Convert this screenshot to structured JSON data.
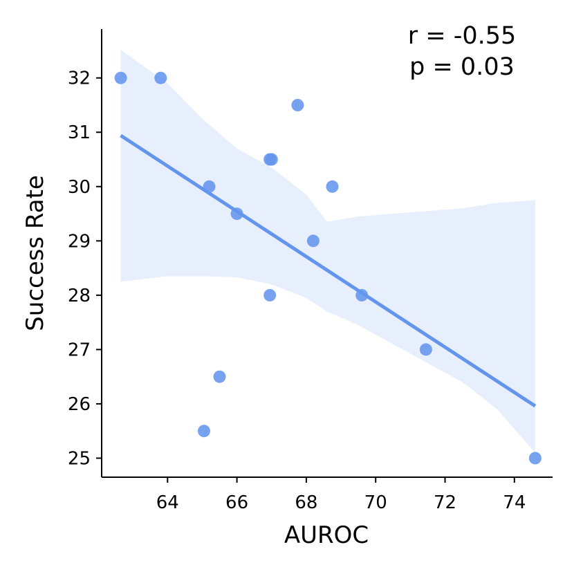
{
  "chart_data": {
    "type": "scatter",
    "xlabel": "AUROC",
    "ylabel": "Success Rate",
    "xlim": [
      62.1,
      75.1
    ],
    "ylim": [
      24.65,
      32.9
    ],
    "xticks": [
      64,
      66,
      68,
      70,
      72,
      74
    ],
    "yticks": [
      25,
      26,
      27,
      28,
      29,
      30,
      31,
      32
    ],
    "points": [
      {
        "x": 62.65,
        "y": 32.0
      },
      {
        "x": 63.8,
        "y": 32.0
      },
      {
        "x": 65.2,
        "y": 30.0
      },
      {
        "x": 66.0,
        "y": 29.5
      },
      {
        "x": 66.95,
        "y": 30.5
      },
      {
        "x": 67.0,
        "y": 30.5
      },
      {
        "x": 66.95,
        "y": 28.0
      },
      {
        "x": 67.75,
        "y": 31.5
      },
      {
        "x": 68.75,
        "y": 30.0
      },
      {
        "x": 68.2,
        "y": 29.0
      },
      {
        "x": 69.6,
        "y": 28.0
      },
      {
        "x": 71.45,
        "y": 27.0
      },
      {
        "x": 65.5,
        "y": 26.5
      },
      {
        "x": 65.05,
        "y": 25.5
      },
      {
        "x": 74.6,
        "y": 25.0
      }
    ],
    "regression": {
      "x": [
        62.65,
        74.6
      ],
      "y": [
        30.94,
        25.96
      ]
    },
    "confidence_band": {
      "x": [
        62.65,
        64.0,
        65.0,
        66.0,
        67.0,
        68.0,
        68.6,
        69.5,
        70.5,
        71.5,
        72.5,
        73.5,
        74.6
      ],
      "upper": [
        32.52,
        31.9,
        31.25,
        30.7,
        30.35,
        29.85,
        29.35,
        29.45,
        29.5,
        29.55,
        29.6,
        29.7,
        29.75
      ],
      "lower": [
        28.25,
        28.35,
        28.35,
        28.33,
        28.2,
        27.95,
        27.7,
        27.45,
        27.1,
        26.75,
        26.4,
        25.9,
        25.1
      ]
    },
    "annotation": [
      "r = -0.55",
      "p = 0.03"
    ],
    "colors": {
      "point": "#6495ED",
      "line": "#6495ED",
      "band": "#E7EEFC"
    },
    "grid": false
  }
}
